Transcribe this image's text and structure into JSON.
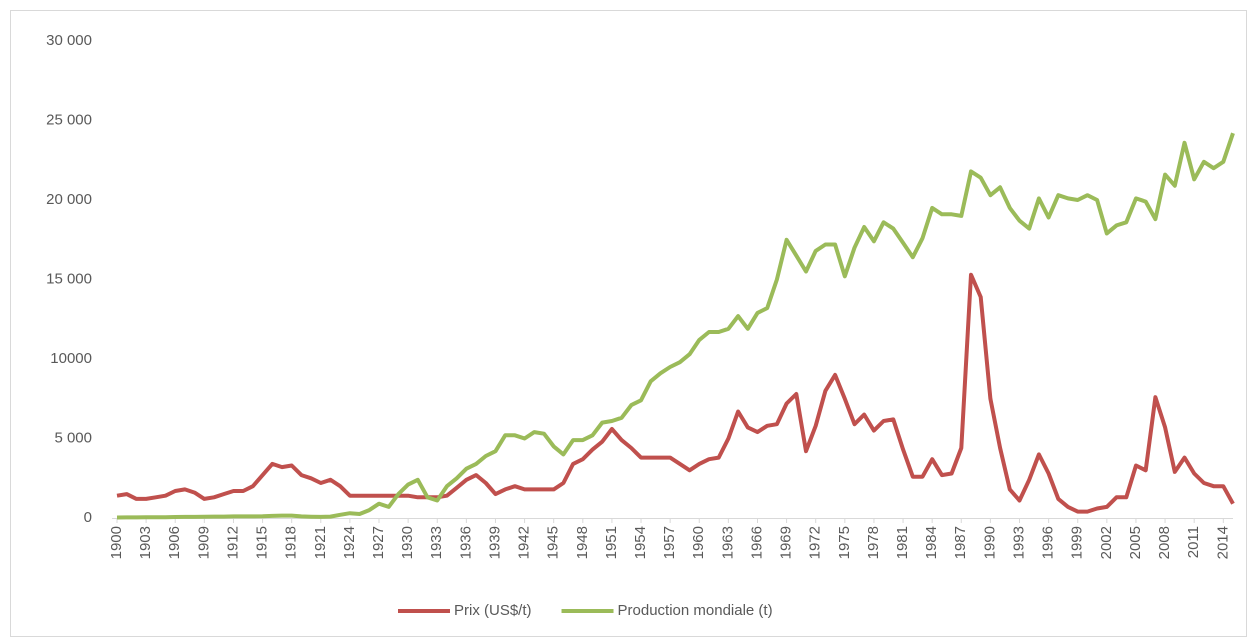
{
  "chart_data": {
    "type": "line",
    "x": [
      1900,
      1901,
      1902,
      1903,
      1904,
      1905,
      1906,
      1907,
      1908,
      1909,
      1910,
      1911,
      1912,
      1913,
      1914,
      1915,
      1916,
      1917,
      1918,
      1919,
      1920,
      1921,
      1922,
      1923,
      1924,
      1925,
      1926,
      1927,
      1928,
      1929,
      1930,
      1931,
      1932,
      1933,
      1934,
      1935,
      1936,
      1937,
      1938,
      1939,
      1940,
      1941,
      1942,
      1943,
      1944,
      1945,
      1946,
      1947,
      1948,
      1949,
      1950,
      1951,
      1952,
      1953,
      1954,
      1955,
      1956,
      1957,
      1958,
      1959,
      1960,
      1961,
      1962,
      1963,
      1964,
      1965,
      1966,
      1967,
      1968,
      1969,
      1970,
      1971,
      1972,
      1973,
      1974,
      1975,
      1976,
      1977,
      1978,
      1979,
      1980,
      1981,
      1982,
      1983,
      1984,
      1985,
      1986,
      1987,
      1988,
      1989,
      1990,
      1991,
      1992,
      1993,
      1994,
      1995,
      1996,
      1997,
      1998,
      1999,
      2000,
      2001,
      2002,
      2003,
      2004,
      2005,
      2006,
      2007,
      2008,
      2009,
      2010,
      2011,
      2012,
      2013,
      2014,
      2015
    ],
    "series": [
      {
        "name": "Prix (US$/t)",
        "color": "#c0504d",
        "values": [
          1400,
          1500,
          1200,
          1200,
          1300,
          1400,
          1700,
          1800,
          1600,
          1200,
          1300,
          1500,
          1700,
          1700,
          2000,
          2700,
          3400,
          3200,
          3300,
          2700,
          2500,
          2200,
          2400,
          2000,
          1400,
          1400,
          1400,
          1400,
          1400,
          1400,
          1400,
          1300,
          1300,
          1300,
          1400,
          1900,
          2400,
          2700,
          2200,
          1500,
          1800,
          2000,
          1800,
          1800,
          1800,
          1800,
          2200,
          3400,
          3700,
          4300,
          4800,
          5600,
          4900,
          4400,
          3800,
          3800,
          3800,
          3800,
          3400,
          3000,
          3400,
          3700,
          3800,
          5000,
          6700,
          5700,
          5400,
          5800,
          5900,
          7200,
          7800,
          4200,
          5800,
          8000,
          9000,
          7500,
          5900,
          6500,
          5500,
          6100,
          6200,
          4300,
          2600,
          2600,
          3700,
          2700,
          2800,
          4400,
          15300,
          13900,
          7500,
          4400,
          1800,
          1100,
          2400,
          4000,
          2800,
          1200,
          700,
          400,
          400,
          600,
          700,
          1300,
          1300,
          3300,
          3000,
          7600,
          5700,
          2900,
          3800,
          2800,
          2200,
          2000,
          2000,
          900
        ]
      },
      {
        "name": "Production mondiale (t)",
        "color": "#9bbb59",
        "values": [
          30,
          40,
          40,
          50,
          50,
          50,
          60,
          70,
          70,
          80,
          90,
          90,
          100,
          100,
          100,
          110,
          130,
          150,
          150,
          100,
          80,
          70,
          90,
          200,
          300,
          250,
          500,
          900,
          700,
          1500,
          2100,
          2400,
          1300,
          1100,
          2000,
          2500,
          3100,
          3400,
          3900,
          4200,
          5200,
          5200,
          5000,
          5400,
          5300,
          4500,
          4000,
          4900,
          4900,
          5200,
          6000,
          6100,
          6300,
          7100,
          7400,
          8600,
          9100,
          9500,
          9800,
          10300,
          11200,
          11700,
          11700,
          11900,
          12700,
          11900,
          12900,
          13200,
          15000,
          17500,
          16500,
          15500,
          16800,
          17200,
          17200,
          15200,
          17000,
          18300,
          17400,
          18600,
          18200,
          17300,
          16400,
          17600,
          19500,
          19100,
          19100,
          19000,
          21800,
          21400,
          20300,
          20800,
          19500,
          18700,
          18200,
          20100,
          18900,
          20300,
          20100,
          20000,
          20300,
          20000,
          17900,
          18400,
          18600,
          20100,
          19900,
          18800,
          21600,
          20900,
          23600,
          21300,
          22400,
          22000,
          22400,
          24200
        ]
      }
    ],
    "xlim": [
      1900,
      2015
    ],
    "xticks": [
      1900,
      1903,
      1906,
      1909,
      1912,
      1915,
      1918,
      1921,
      1924,
      1927,
      1930,
      1933,
      1936,
      1939,
      1942,
      1945,
      1948,
      1951,
      1954,
      1957,
      1960,
      1963,
      1966,
      1969,
      1972,
      1975,
      1978,
      1981,
      1984,
      1987,
      1990,
      1993,
      1996,
      1999,
      2002,
      2005,
      2008,
      2011,
      2014
    ],
    "ylim": [
      0,
      30000
    ],
    "yticks": [
      0,
      {
        "value": 5000,
        "label": "5 000"
      },
      {
        "value": 10000,
        "label": "10000"
      },
      {
        "value": 15000,
        "label": "15 000"
      },
      {
        "value": 20000,
        "label": "20 000"
      },
      {
        "value": 25000,
        "label": "25 000"
      },
      {
        "value": 30000,
        "label": "30 000"
      }
    ],
    "grid": false,
    "legend": "bottom"
  }
}
